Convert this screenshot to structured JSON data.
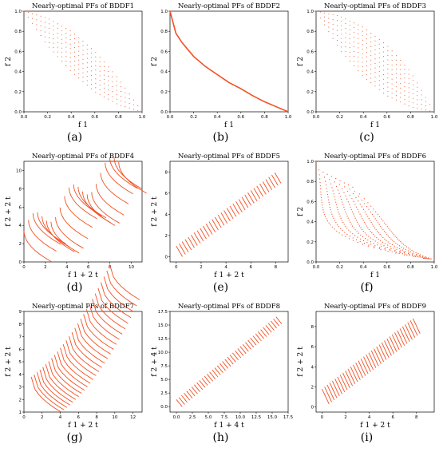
{
  "accent_color": "#f25022",
  "chart_data": [
    {
      "id": "a",
      "caption": "(a)",
      "type": "scatter",
      "title": "Nearly-optimal PFs of BDDF1",
      "xlabel": "f 1",
      "ylabel": "f 2",
      "xlim": [
        0,
        1
      ],
      "ylim": [
        0,
        1
      ],
      "xticks": [
        "0.0",
        "0.2",
        "0.4",
        "0.6",
        "0.8",
        "1.0"
      ],
      "yticks": [
        "0.0",
        "0.2",
        "0.4",
        "0.6",
        "0.8",
        "1.0"
      ],
      "pattern": "region",
      "region": {
        "upper": [
          [
            0,
            1
          ],
          [
            0.2,
            0.93
          ],
          [
            0.4,
            0.8
          ],
          [
            0.6,
            0.6
          ],
          [
            0.8,
            0.33
          ],
          [
            1,
            0
          ]
        ],
        "lower": [
          [
            0,
            1
          ],
          [
            0.2,
            0.66
          ],
          [
            0.4,
            0.4
          ],
          [
            0.6,
            0.2
          ],
          [
            0.8,
            0.07
          ],
          [
            1,
            0
          ]
        ]
      }
    },
    {
      "id": "b",
      "caption": "(b)",
      "type": "line",
      "title": "Nearly-optimal PFs of BDDF2",
      "xlabel": "f 1",
      "ylabel": "f 2",
      "xlim": [
        0,
        1
      ],
      "ylim": [
        0,
        1
      ],
      "xticks": [
        "0.0",
        "0.2",
        "0.4",
        "0.6",
        "0.8",
        "1.0"
      ],
      "yticks": [
        "0.0",
        "0.2",
        "0.4",
        "0.6",
        "0.8",
        "1.0"
      ],
      "pattern": "curve",
      "curve": [
        [
          0,
          1
        ],
        [
          0.05,
          0.78
        ],
        [
          0.1,
          0.69
        ],
        [
          0.2,
          0.55
        ],
        [
          0.3,
          0.45
        ],
        [
          0.4,
          0.37
        ],
        [
          0.5,
          0.29
        ],
        [
          0.6,
          0.23
        ],
        [
          0.7,
          0.16
        ],
        [
          0.8,
          0.1
        ],
        [
          0.9,
          0.05
        ],
        [
          1,
          0
        ]
      ]
    },
    {
      "id": "c",
      "caption": "(c)",
      "type": "scatter",
      "title": "Nearly-optimal PFs of BDDF3",
      "xlabel": "f 1",
      "ylabel": "f 2",
      "xlim": [
        0,
        1
      ],
      "ylim": [
        0,
        1
      ],
      "xticks": [
        "0.0",
        "0.2",
        "0.4",
        "0.6",
        "0.8",
        "1.0"
      ],
      "yticks": [
        "0.0",
        "0.2",
        "0.4",
        "0.6",
        "0.8",
        "1.0"
      ],
      "pattern": "region",
      "region": {
        "upper": [
          [
            0,
            1
          ],
          [
            0.2,
            0.95
          ],
          [
            0.4,
            0.84
          ],
          [
            0.6,
            0.66
          ],
          [
            0.8,
            0.4
          ],
          [
            1,
            0
          ]
        ],
        "lower": [
          [
            0,
            1
          ],
          [
            0.2,
            0.62
          ],
          [
            0.4,
            0.35
          ],
          [
            0.6,
            0.16
          ],
          [
            0.8,
            0.05
          ],
          [
            1,
            0
          ]
        ]
      }
    },
    {
      "id": "d",
      "caption": "(d)",
      "type": "scatter",
      "title": "Nearly-optimal PFs of BDDF4",
      "xlabel": "f 1 + 2 t",
      "ylabel": "f 2 + 2 t",
      "xlim": [
        0,
        11
      ],
      "ylim": [
        0,
        11
      ],
      "xticks": [
        "0",
        "2",
        "4",
        "6",
        "8",
        "10"
      ],
      "yticks": [
        "0",
        "2",
        "4",
        "6",
        "8",
        "10"
      ],
      "pattern": "wavy",
      "count": 22,
      "start": [
        0,
        0
      ],
      "step": [
        0.42,
        0.36
      ],
      "height": 3.4,
      "length": 2.6,
      "wobble": 1.2
    },
    {
      "id": "e",
      "caption": "(e)",
      "type": "scatter",
      "title": "Nearly-optimal PFs of BDDF5",
      "xlabel": "f 1 + 2 t",
      "ylabel": "f 2 + 2 t",
      "xlim": [
        -0.5,
        9
      ],
      "ylim": [
        -0.5,
        9
      ],
      "xticks": [
        "0",
        "2",
        "4",
        "6",
        "8"
      ],
      "yticks": [
        "0",
        "2",
        "4",
        "6",
        "8"
      ],
      "pattern": "stripes",
      "count": 34,
      "start": [
        0,
        0
      ],
      "step": [
        0.24,
        0.21
      ],
      "height": 1.0,
      "length": 0.5
    },
    {
      "id": "f",
      "caption": "(f)",
      "type": "scatter",
      "title": "Nearly-optimal PFs of BDDF6",
      "xlabel": "f 1",
      "ylabel": "f 2",
      "xlim": [
        0,
        1
      ],
      "ylim": [
        0,
        1
      ],
      "xticks": [
        "0.0",
        "0.2",
        "0.4",
        "0.6",
        "0.8",
        "1.0"
      ],
      "yticks": [
        "0.0",
        "0.2",
        "0.4",
        "0.6",
        "0.8",
        "1.0"
      ],
      "pattern": "lcurves",
      "count": 9
    },
    {
      "id": "g",
      "caption": "(g)",
      "type": "scatter",
      "title": "Nearly-optimal PFs of BDDF7",
      "xlabel": "f 1 + 2 t",
      "ylabel": "f 2 + 2 t",
      "xlim": [
        0,
        13
      ],
      "ylim": [
        1,
        9
      ],
      "xticks": [
        "0",
        "2",
        "4",
        "6",
        "8",
        "10",
        "12"
      ],
      "yticks": [
        "1",
        "2",
        "3",
        "4",
        "5",
        "6",
        "7",
        "8",
        "9"
      ],
      "pattern": "fan",
      "count": 28,
      "start": [
        0.8,
        1.0
      ],
      "step": [
        0.32,
        0.17
      ],
      "height": 2.8,
      "length": 3.3
    },
    {
      "id": "h",
      "caption": "(h)",
      "type": "scatter",
      "title": "Nearly-optimal PFs of BDDF8",
      "xlabel": "f 1 + 4 t",
      "ylabel": "f 2 + 4 t",
      "xlim": [
        -1,
        17.5
      ],
      "ylim": [
        -1,
        17.5
      ],
      "xticks": [
        "0.0",
        "2.5",
        "5.0",
        "7.5",
        "10.0",
        "12.5",
        "15.0",
        "17.5"
      ],
      "yticks": [
        "0.0",
        "2.5",
        "5.0",
        "7.5",
        "10.0",
        "12.5",
        "15.0",
        "17.5"
      ],
      "pattern": "stripes",
      "count": 40,
      "start": [
        0,
        0
      ],
      "step": [
        0.4,
        0.39
      ],
      "height": 1.3,
      "length": 0.9
    },
    {
      "id": "i",
      "caption": "(i)",
      "type": "scatter",
      "title": "Nearly-optimal PFs of BDDF9",
      "xlabel": "f 1 + 2 t",
      "ylabel": "f 2 + 2 t",
      "xlim": [
        -0.5,
        9.5
      ],
      "ylim": [
        -0.5,
        9.5
      ],
      "xticks": [
        "0",
        "2",
        "4",
        "6",
        "8"
      ],
      "yticks": [
        "0",
        "2",
        "4",
        "6",
        "8"
      ],
      "pattern": "stripes",
      "count": 36,
      "start": [
        0,
        0.3
      ],
      "step": [
        0.22,
        0.2
      ],
      "height": 1.5,
      "length": 0.6
    }
  ]
}
